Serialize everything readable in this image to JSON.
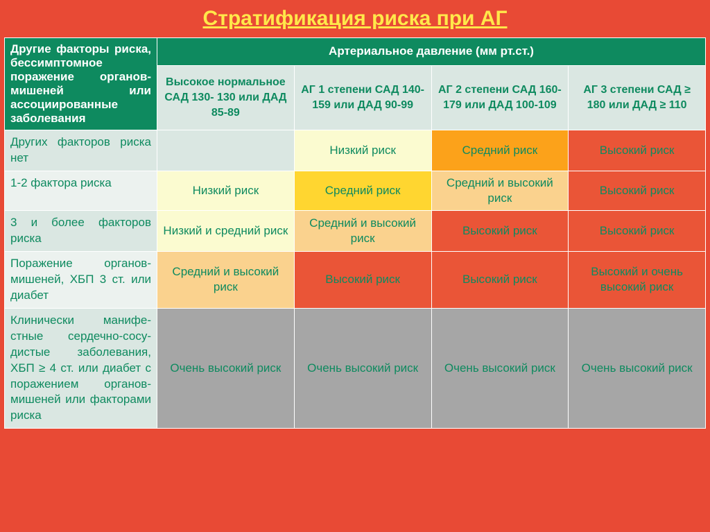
{
  "title": "Стратификация риска при АГ",
  "colors": {
    "page_bg": "#e84a35",
    "title_color": "#ffe84a",
    "header_bg": "#0e8a5f",
    "header_text": "#ffffff",
    "subheader_bg": "#dae7e2",
    "text_teal": "#0e8a5f",
    "row_alt1": "#dae7e2",
    "row_alt2": "#ecf2ef",
    "cell_yellow": "#ffd630",
    "cell_yellow_light": "#fbfbd0",
    "cell_orange": "#fca21a",
    "cell_orange_light": "#fad28e",
    "cell_red": "#ea5537",
    "cell_gray": "#a6a6a6",
    "border": "#ffffff"
  },
  "header": {
    "row_factors": "Другие факторы риска, бессимптомное поражение органов-мишеней или ассоциированные заболевания",
    "bp_title": "Артериальное давление (мм рт.ст.)",
    "cols": [
      "Высокое нормальное САД 130- 130 или ДАД 85-89",
      "АГ 1 степени САД 140-159 или ДАД 90-99",
      "АГ 2 степени САД 160-179 или ДАД 100-109",
      "АГ 3 степени САД ≥ 180 или ДАД ≥ 110"
    ]
  },
  "rows": [
    {
      "label": "Других факторов риска нет",
      "cells": [
        {
          "text": "",
          "bg": "bg-lt1"
        },
        {
          "text": "Низкий риск",
          "bg": "bg-yellow2"
        },
        {
          "text": "Средний риск",
          "bg": "bg-orange"
        },
        {
          "text": "Высокий риск",
          "bg": "bg-red"
        }
      ],
      "label_bg": "bg-lt1"
    },
    {
      "label": "1-2 фактора риска",
      "cells": [
        {
          "text": "Низкий риск",
          "bg": "bg-yellow2"
        },
        {
          "text": "Средний риск",
          "bg": "bg-yellow"
        },
        {
          "text": "Средний и высокий риск",
          "bg": "bg-orange2"
        },
        {
          "text": "Высокий риск",
          "bg": "bg-red"
        }
      ],
      "label_bg": "bg-lt2"
    },
    {
      "label": "3 и более факторов риска",
      "cells": [
        {
          "text": "Низкий и средний риск",
          "bg": "bg-yellow2"
        },
        {
          "text": "Средний и высокий риск",
          "bg": "bg-orange2"
        },
        {
          "text": "Высокий риск",
          "bg": "bg-red"
        },
        {
          "text": "Высокий риск",
          "bg": "bg-red"
        }
      ],
      "label_bg": "bg-lt1"
    },
    {
      "label": "Поражение органов-мишеней, ХБП 3 ст. или диабет",
      "cells": [
        {
          "text": "Средний и высокий риск",
          "bg": "bg-orange2"
        },
        {
          "text": "Высокий риск",
          "bg": "bg-red"
        },
        {
          "text": "Высокий риск",
          "bg": "bg-red"
        },
        {
          "text": "Высокий и очень высокий риск",
          "bg": "bg-red"
        }
      ],
      "label_bg": "bg-lt2"
    },
    {
      "label": "Клинически манифе-стные сердечно-сосу-дистые заболевания, ХБП ≥ 4 ст. или диабет с поражением органов-мишеней или факторами риска",
      "cells": [
        {
          "text": "Очень высокий риск",
          "bg": "bg-gray"
        },
        {
          "text": "Очень высокий риск",
          "bg": "bg-gray"
        },
        {
          "text": "Очень высокий риск",
          "bg": "bg-gray"
        },
        {
          "text": "Очень высокий риск",
          "bg": "bg-gray"
        }
      ],
      "label_bg": "bg-lt1"
    }
  ]
}
